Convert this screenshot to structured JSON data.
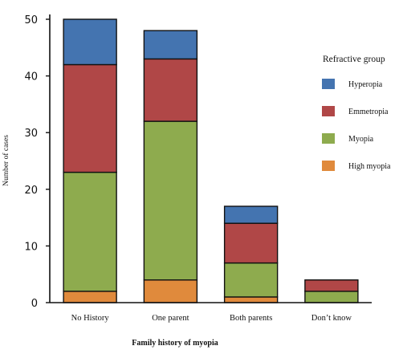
{
  "chart_data": {
    "type": "bar",
    "stacked": true,
    "categories": [
      "No History",
      "One parent",
      "Both parents",
      "Don’t know"
    ],
    "series": [
      {
        "name": "High myopia",
        "color": "#e08a3c",
        "values": [
          2,
          4,
          1,
          0
        ]
      },
      {
        "name": "Myopia",
        "color": "#8eab4e",
        "values": [
          21,
          28,
          6,
          2
        ]
      },
      {
        "name": "Emmetropia",
        "color": "#b04747",
        "values": [
          19,
          11,
          7,
          2
        ]
      },
      {
        "name": "Hyperopia",
        "color": "#4474b0",
        "values": [
          8,
          5,
          3,
          0
        ]
      }
    ],
    "xlabel": "Family history of myopia",
    "ylabel": "Number of cases",
    "ylim": [
      0,
      50
    ],
    "yticks": [
      0,
      10,
      20,
      30,
      40,
      50
    ],
    "legend": {
      "title": "Refractive group",
      "placement": "right",
      "order": [
        "Hyperopia",
        "Emmetropia",
        "Myopia",
        "High myopia"
      ]
    },
    "grid": false
  }
}
